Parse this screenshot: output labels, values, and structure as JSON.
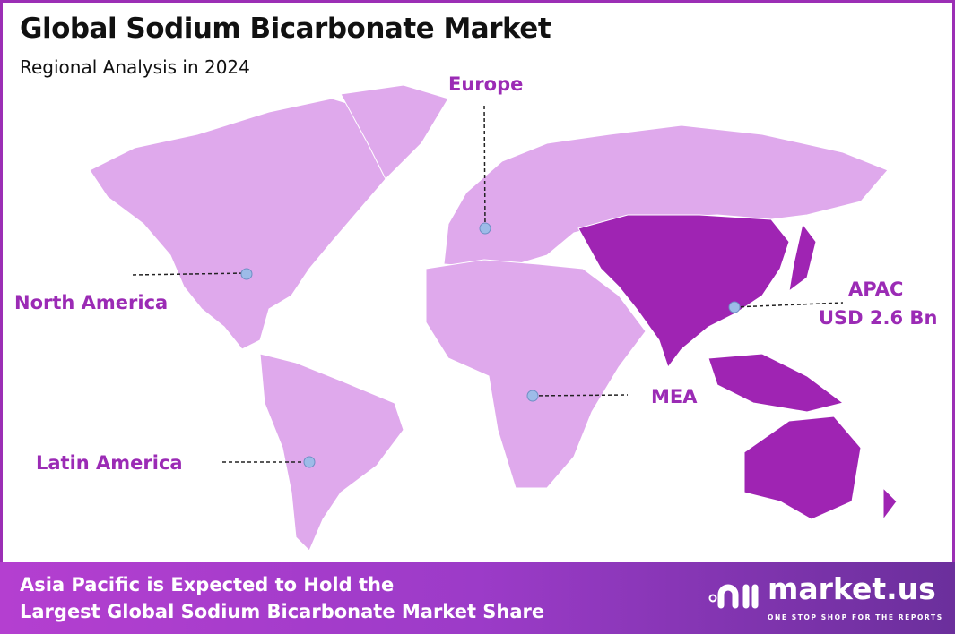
{
  "header": {
    "title": "Global Sodium Bicarbonate Market",
    "subtitle": "Regional Analysis in 2024"
  },
  "regions": [
    {
      "name": "North America",
      "value": ""
    },
    {
      "name": "Europe",
      "value": ""
    },
    {
      "name": "APAC",
      "value": "USD 2.6 Bn",
      "highlighted": true
    },
    {
      "name": "MEA",
      "value": ""
    },
    {
      "name": "Latin America",
      "value": ""
    }
  ],
  "colors": {
    "land": "#dfa9ec",
    "highlight": "#9f24b3",
    "label": "#9b2bb5",
    "marker": "#9dbbe8",
    "border": "#9b2fb5"
  },
  "footer": {
    "line1": "Asia Pacific is Expected to Hold the",
    "line2": "Largest Global Sodium Bicarbonate Market Share"
  },
  "logo": {
    "name": "market.us",
    "tagline": "ONE STOP SHOP FOR THE REPORTS"
  }
}
